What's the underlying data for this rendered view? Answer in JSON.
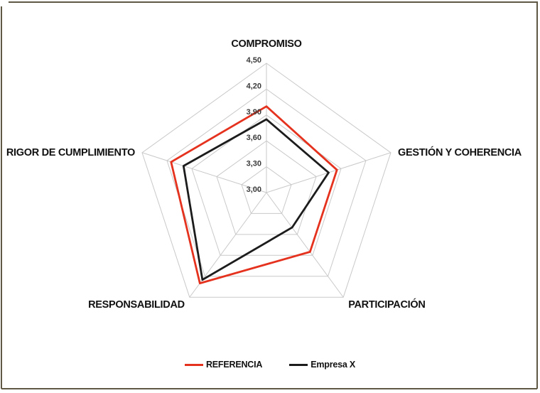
{
  "frame": {
    "border_color": "#5f5844"
  },
  "chart_data": {
    "type": "radar",
    "categories": [
      "COMPROMISO",
      "GESTIÓN Y COHERENCIA",
      "PARTICIPACIÓN",
      "RESPONSABILIDAD",
      "RIGOR DE CUMPLIMIENTO"
    ],
    "series": [
      {
        "name": "REFERENCIA",
        "color": "#e5321e",
        "values": [
          4.0,
          3.85,
          3.85,
          4.3,
          4.15
        ]
      },
      {
        "name": "Empresa X",
        "color": "#1c1c1c",
        "values": [
          3.85,
          3.75,
          3.5,
          4.25,
          4.0
        ]
      }
    ],
    "scale": {
      "min": 3.0,
      "max": 4.5,
      "step": 0.3
    },
    "tick_labels": [
      "4,50",
      "4,20",
      "3,90",
      "3,60",
      "3,30",
      "3,00"
    ],
    "grid_on": true,
    "grid_color": "#c9c9c9",
    "legend_position": "bottom"
  }
}
